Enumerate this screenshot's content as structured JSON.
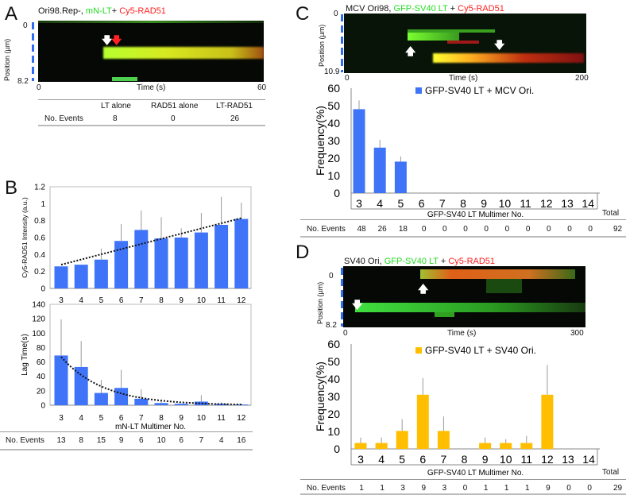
{
  "panels": {
    "A": {
      "label": "A",
      "title": {
        "part1": "Ori98.Rep-, ",
        "green": "mN-LT",
        "part2": "+ ",
        "red": "Cy5-RAD51"
      },
      "y_top": "0",
      "y_bottom": "8.2",
      "y_axis_label": "Position (µm)",
      "x_start": "0",
      "x_label": "Time (s)",
      "x_end": "60",
      "table": {
        "row_label": "No. Events",
        "columns": [
          "LT alone",
          "RAD51 alone",
          "LT-RAD51"
        ],
        "values": [
          "8",
          "0",
          "26"
        ]
      }
    },
    "B": {
      "label": "B",
      "table": {
        "row_label": "No. Events",
        "values": [
          "13",
          "8",
          "15",
          "9",
          "6",
          "10",
          "6",
          "7",
          "4",
          "16"
        ]
      }
    },
    "C": {
      "label": "C",
      "title": {
        "part1": "MCV Ori98, ",
        "green": "GFP-SV40 LT",
        "part2": " + ",
        "red": "Cy5-RAD51"
      },
      "y_top": "0",
      "y_bottom": "10.9",
      "y_axis_label": "Position (µm)",
      "x_start": "0",
      "x_label": "Time (s)",
      "x_end": "200",
      "table": {
        "row_label": "No. Events",
        "values": [
          "48",
          "26",
          "18",
          "0",
          "0",
          "0",
          "0",
          "0",
          "0",
          "0",
          "0",
          "0"
        ],
        "total_label": "Total",
        "total": "92"
      }
    },
    "D": {
      "label": "D",
      "title": {
        "part1": "SV40 Ori, ",
        "green": "GFP-SV40 LT",
        "part2": " + ",
        "red": "Cy5-RAD51"
      },
      "y_top": "0",
      "y_bottom": "8.2",
      "y_axis_label": "Position (µm)",
      "x_start": "0",
      "x_label": "Time (s)",
      "x_end": "300",
      "table": {
        "row_label": "No. Events",
        "values": [
          "1",
          "1",
          "3",
          "9",
          "3",
          "0",
          "1",
          "1",
          "1",
          "9",
          "0",
          "0"
        ],
        "total_label": "Total",
        "total": "29"
      }
    }
  },
  "chart_data": [
    {
      "type": "bar",
      "panel": "B-top",
      "categories": [
        "3",
        "4",
        "5",
        "6",
        "7",
        "8",
        "9",
        "10",
        "11",
        "12"
      ],
      "values": [
        0.26,
        0.28,
        0.34,
        0.56,
        0.69,
        0.59,
        0.6,
        0.66,
        0.75,
        0.82
      ],
      "error_upper": [
        null,
        null,
        0.47,
        0.76,
        0.92,
        0.84,
        0.71,
        0.89,
        1.08,
        1.01
      ],
      "ylabel": "Cy5-RAD51 Intensity (a.u.)",
      "xlabel": "",
      "ylim": [
        0,
        1.2
      ],
      "yticks": [
        "0",
        "0.2",
        "0.4",
        "0.6",
        "0.8",
        "1",
        "1.2"
      ],
      "trendline": {
        "type": "linear",
        "from": [
          3,
          0.28
        ],
        "to": [
          12,
          0.83
        ]
      },
      "color": "#3f74f8"
    },
    {
      "type": "bar",
      "panel": "B-bottom",
      "categories": [
        "3",
        "4",
        "5",
        "6",
        "7",
        "8",
        "9",
        "10",
        "11",
        "12"
      ],
      "values": [
        69,
        53,
        17,
        24,
        9,
        3,
        2,
        5,
        2,
        1
      ],
      "error_upper": [
        119,
        89,
        35,
        49,
        22,
        8,
        null,
        14,
        4,
        2
      ],
      "ylabel": "Lag Time(s)",
      "xlabel": "mN-LT Multimer No.",
      "ylim": [
        0,
        140
      ],
      "yticks": [
        "0",
        "20",
        "40",
        "60",
        "80",
        "100",
        "120",
        "140"
      ],
      "trendline": {
        "type": "exponential",
        "a": 67,
        "b": -0.47,
        "x0": 3,
        "x1": 12
      },
      "color": "#3f74f8"
    },
    {
      "type": "bar",
      "panel": "C",
      "categories": [
        "3",
        "4",
        "5",
        "6",
        "7",
        "8",
        "9",
        "10",
        "11",
        "12",
        "13",
        "14"
      ],
      "values": [
        48,
        26,
        18,
        0,
        0,
        0,
        0,
        0,
        0,
        0,
        0,
        0
      ],
      "error_upper": [
        53,
        30.5,
        21,
        null,
        null,
        null,
        null,
        null,
        null,
        null,
        null,
        null
      ],
      "legend": "GFP-SV40 LT + MCV Ori.",
      "legend_position": "top-center",
      "ylabel": "Frequency(%)",
      "xlabel": "GFP-SV40 LT Multimer No.",
      "ylim": [
        0,
        60
      ],
      "yticks": [
        "0",
        "10",
        "20",
        "30",
        "40",
        "50",
        "60"
      ],
      "color": "#3f74f8"
    },
    {
      "type": "bar",
      "panel": "D",
      "categories": [
        "3",
        "4",
        "5",
        "6",
        "7",
        "8",
        "9",
        "10",
        "11",
        "12",
        "13",
        "14"
      ],
      "values": [
        3.4,
        3.4,
        10.3,
        31,
        10.3,
        0,
        3.4,
        3.4,
        3.4,
        31,
        0,
        0
      ],
      "error_upper": [
        6.5,
        6.5,
        17,
        40.5,
        18.5,
        null,
        6.5,
        5.5,
        7.5,
        48,
        null,
        null
      ],
      "legend": "GFP-SV40 LT + SV40 Ori.",
      "legend_position": "top-center",
      "ylabel": "Frequency(%)",
      "xlabel": "GFP-SV40 LT Multimer No.",
      "ylim": [
        0,
        60
      ],
      "yticks": [
        "0",
        "10",
        "20",
        "30",
        "40",
        "50",
        "60"
      ],
      "color": "#ffbf00"
    }
  ]
}
